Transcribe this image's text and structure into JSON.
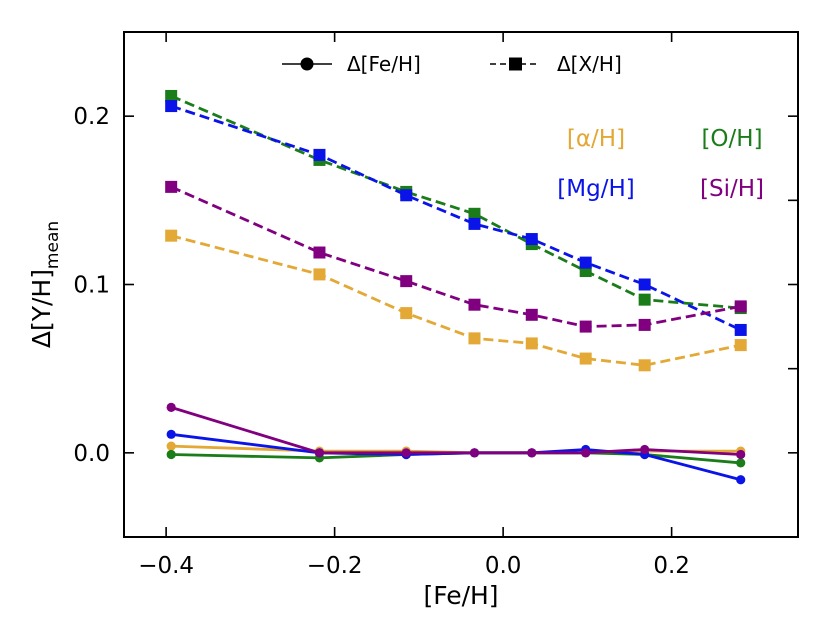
{
  "chart_data": {
    "type": "line",
    "xlabel": "[Fe/H]",
    "ylabel_main": "Δ[Y/H]",
    "ylabel_sub": "mean",
    "xlim": [
      -0.45,
      0.35
    ],
    "ylim": [
      -0.05,
      0.25
    ],
    "xticks": [
      -0.4,
      -0.2,
      0.0,
      0.2
    ],
    "xtick_labels": [
      "−0.4",
      "−0.2",
      "0.0",
      "0.2"
    ],
    "yticks": [
      0.0,
      0.1,
      0.2
    ],
    "ytick_labels": [
      "0.0",
      "0.1",
      "0.2"
    ],
    "x": [
      -0.394,
      -0.218,
      -0.115,
      -0.034,
      0.034,
      0.098,
      0.168,
      0.282
    ],
    "legend": [
      {
        "label": "Δ[Fe/H]",
        "marker": "circle",
        "linestyle": "solid"
      },
      {
        "label": "Δ[X/H]",
        "marker": "square",
        "linestyle": "dashed"
      }
    ],
    "series": [
      {
        "name": "[α/H]",
        "color": "#e3a835",
        "fe_values": [
          0.004,
          0.001,
          0.001,
          0.0,
          0.0,
          0.0,
          0.001,
          0.001
        ],
        "x_values": [
          0.129,
          0.106,
          0.083,
          0.068,
          0.065,
          0.056,
          0.052,
          0.064
        ]
      },
      {
        "name": "[O/H]",
        "color": "#1a7d1a",
        "fe_values": [
          -0.001,
          -0.003,
          -0.001,
          0.0,
          0.0,
          0.0,
          -0.001,
          -0.006
        ],
        "x_values": [
          0.212,
          0.174,
          0.155,
          0.142,
          0.124,
          0.108,
          0.091,
          0.086
        ]
      },
      {
        "name": "[Mg/H]",
        "color": "#0a14e8",
        "fe_values": [
          0.011,
          0.0,
          -0.001,
          0.0,
          0.0,
          0.002,
          -0.001,
          -0.016
        ],
        "x_values": [
          0.206,
          0.177,
          0.153,
          0.136,
          0.127,
          0.113,
          0.1,
          0.073
        ]
      },
      {
        "name": "[Si/H]",
        "color": "#800080",
        "fe_values": [
          0.027,
          0.0,
          0.0,
          0.0,
          0.0,
          0.0,
          0.002,
          -0.001
        ],
        "x_values": [
          0.158,
          0.119,
          0.102,
          0.088,
          0.082,
          0.075,
          0.076,
          0.087
        ]
      }
    ]
  }
}
